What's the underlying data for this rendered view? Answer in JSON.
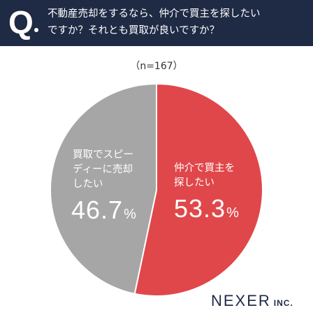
{
  "header": {
    "q_mark": "Q",
    "question_line1": "不動産売却をするなら、仲介で買主を探したい",
    "question_line2": "ですか？それとも買取が良いですか？"
  },
  "sample_label": "（n=167）",
  "logo": {
    "main": "NEXER",
    "sub": "INC."
  },
  "colors": {
    "header_bg": "#1f2a44",
    "red": "#e0474a",
    "gray": "#a6a6a6"
  },
  "chart_data": {
    "type": "pie",
    "title": "",
    "slices": [
      {
        "label_line1": "仲介で買主を",
        "label_line2": "探したい",
        "value": 53.3,
        "value_text": "53.3",
        "unit": "%",
        "color": "#e0474a"
      },
      {
        "label_line1": "買取でスピー",
        "label_line2": "ディーに売却",
        "label_line3": "したい",
        "value": 46.7,
        "value_text": "46.7",
        "unit": "%",
        "color": "#a6a6a6"
      }
    ]
  }
}
